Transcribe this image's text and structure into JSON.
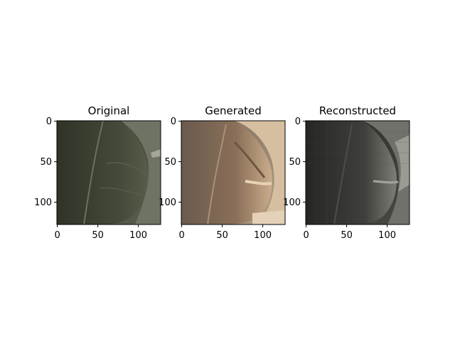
{
  "figure": {
    "background": "#ffffff",
    "panels": [
      {
        "title": "Original",
        "image_palette": {
          "base": "#4a4f40",
          "dark": "#2f3427",
          "light": "#7d816f",
          "accent": "#5f6552"
        },
        "x_ticks": [
          "0",
          "50",
          "100"
        ],
        "y_ticks": [
          "0",
          "50",
          "100"
        ]
      },
      {
        "title": "Generated",
        "image_palette": {
          "base": "#8a7868",
          "dark": "#5b4a3f",
          "light": "#d9c3a6",
          "accent": "#b59a80"
        },
        "x_ticks": [
          "0",
          "50",
          "100"
        ],
        "y_ticks": [
          "0",
          "50",
          "100"
        ]
      },
      {
        "title": "Reconstructed",
        "image_palette": {
          "base": "#3b3b38",
          "dark": "#272725",
          "light": "#8e9088",
          "accent": "#555650"
        },
        "x_ticks": [
          "0",
          "50",
          "100"
        ],
        "y_ticks": [
          "0",
          "50",
          "100"
        ]
      }
    ]
  }
}
